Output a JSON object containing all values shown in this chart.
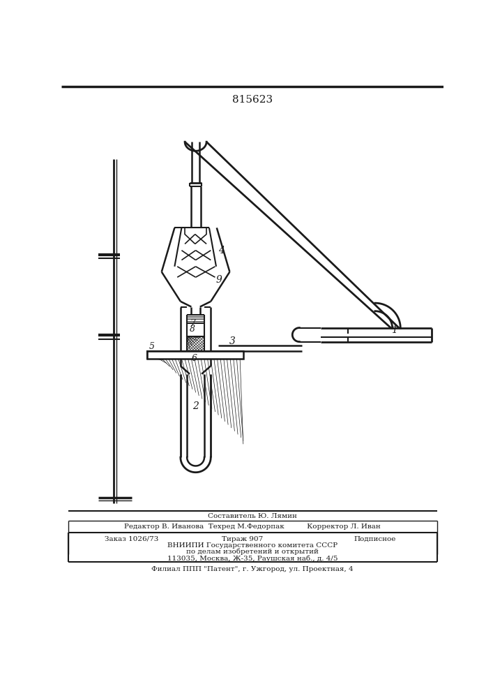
{
  "title": "815623",
  "bg_color": "#ffffff",
  "line_color": "#1a1a1a",
  "footer_lines": [
    "Составитель Ю. Лямин",
    "Редактор В. Иванова  Техред М.Федорпак          Корректор Л. Иван",
    "Заказ 1026/73          Тираж 907                    Подписное",
    "ВНИИПИ Государственного комитета СССР",
    "по делам изобретений и открытий",
    "113035, Москва, Ж-35, Раушская наб., д. 4/5",
    "Филиал ППП \"Патент\", г. Ужгород, ул. Проектная, 4"
  ]
}
